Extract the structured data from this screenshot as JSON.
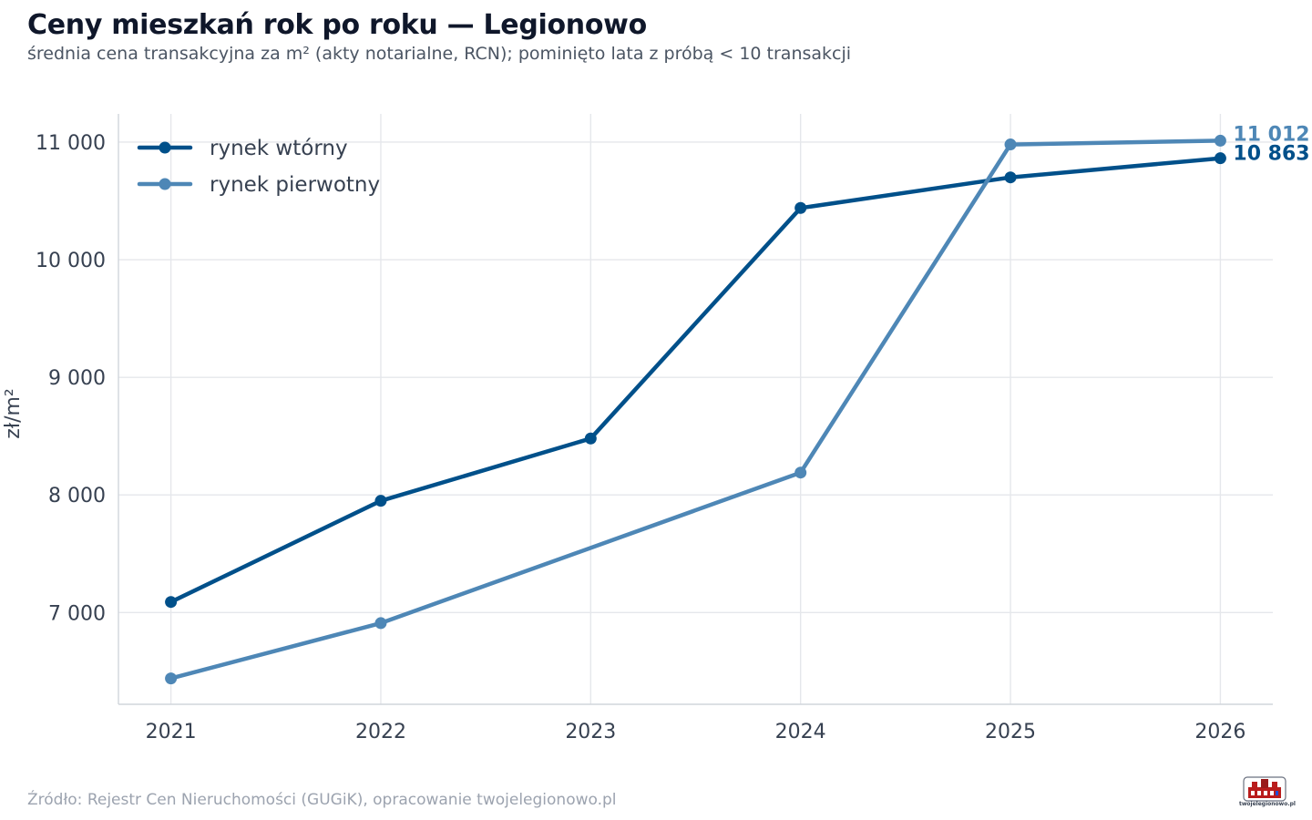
{
  "header": {
    "title": "Ceny mieszkań rok po roku — Legionowo",
    "subtitle": "średnia cena transakcyjna za m² (akty notarialne, RCN); pominięto lata z próbą < 10 transakcji"
  },
  "footer": {
    "source": "Źródło: Rejestr Cen Nieruchomości (GUGiK), opracowanie twojelegionowo.pl",
    "logo_text": "twojelegionowo.pl"
  },
  "chart_data": {
    "type": "line",
    "title": "Ceny mieszkań rok po roku — Legionowo",
    "subtitle": "średnia cena transakcyjna za m² (akty notarialne, RCN); pominięto lata z próbą < 10 transakcji",
    "xlabel": "",
    "ylabel": "zł/m²",
    "x": [
      "2021",
      "2022",
      "2023",
      "2024",
      "2025",
      "2026"
    ],
    "xlim": [
      2020.75,
      2026.25
    ],
    "ylim": [
      6220,
      11240
    ],
    "yticks": [
      7000,
      8000,
      9000,
      10000,
      11000
    ],
    "ytick_labels": [
      "7 000",
      "8 000",
      "9 000",
      "10 000",
      "11 000"
    ],
    "grid": true,
    "legend_position": "top-left",
    "series": [
      {
        "name": "rynek wtórny",
        "color": "#00508a",
        "values": [
          7090,
          7950,
          8480,
          10440,
          10700,
          10863
        ],
        "end_label": "10 863"
      },
      {
        "name": "rynek pierwotny",
        "color": "#4e87b6",
        "values": [
          6440,
          6910,
          null,
          8190,
          10980,
          11012
        ],
        "end_label": "11 012"
      }
    ]
  }
}
